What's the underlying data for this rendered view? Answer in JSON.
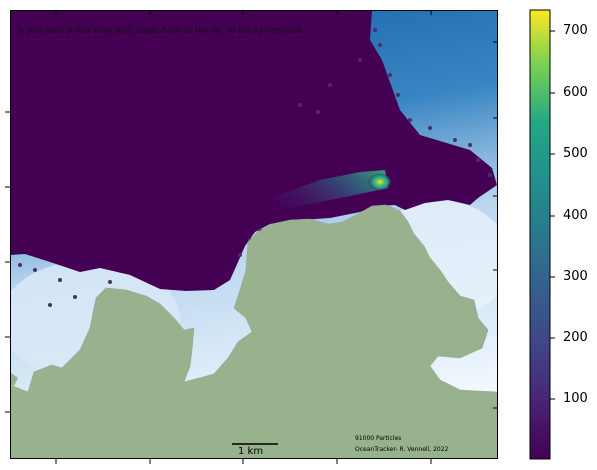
{
  "map": {
    "title": "ly pollutant at last time step, depth-built on the fly, no tracks-recorded",
    "scale_label": "1 km",
    "particles_label": "91000 Particles",
    "credit_label": "OceanTracker- R. Vennell, 2022"
  },
  "colorbar": {
    "ticks": [
      "100",
      "200",
      "300",
      "400",
      "500",
      "600",
      "700"
    ]
  },
  "colors": {
    "land": "#97b28c",
    "water_deep": "#1f6eb4",
    "water_shallow": "#f2f8ff",
    "plume": "#440154"
  }
}
